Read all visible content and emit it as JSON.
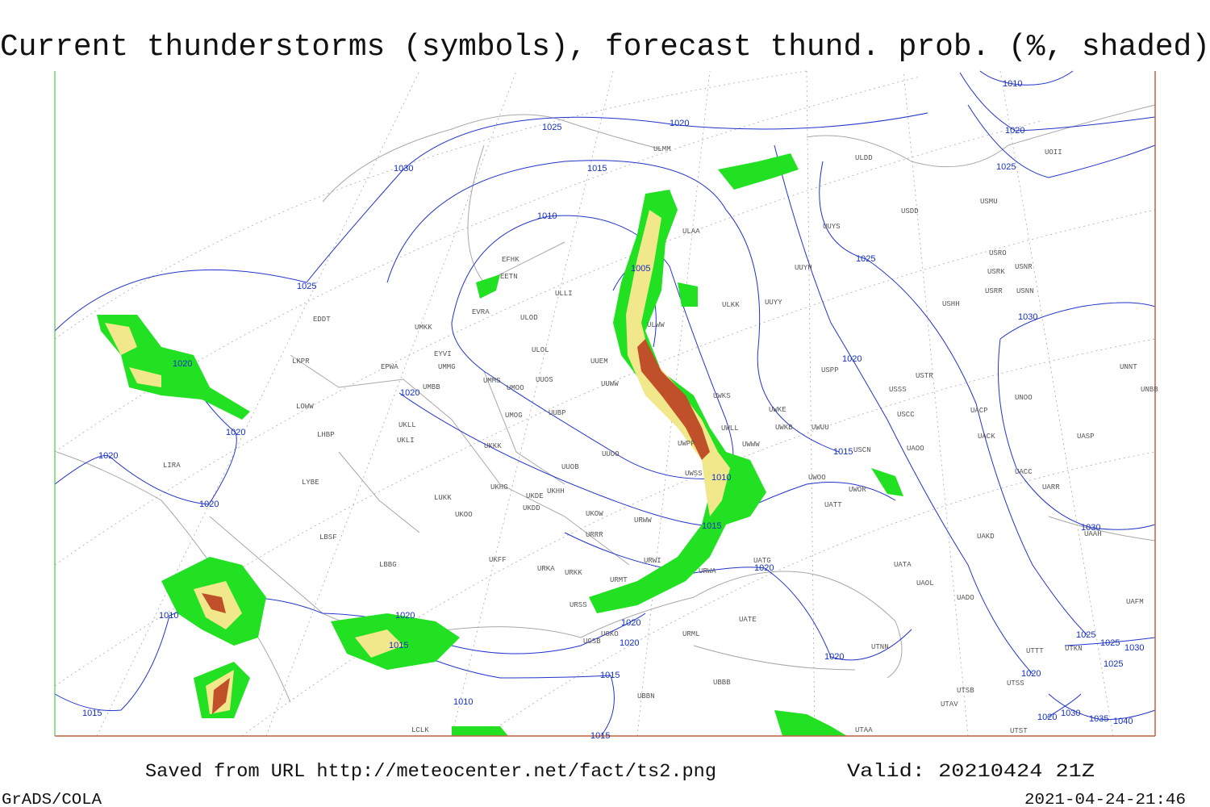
{
  "header": {
    "title": "Current thunderstorms (symbols), forecast thund. prob. (%, shaded)"
  },
  "footer": {
    "source": "Saved from URL http://meteocenter.net/fact/ts2.png",
    "valid": "Valid: 20210424 21Z",
    "software": "GrADS/COLA",
    "timestamp": "2021-04-24-21:46"
  },
  "stations": [
    "ULMM",
    "ULDD",
    "USDD",
    "USMU",
    "UOII",
    "UUYS",
    "ULAA",
    "UUYH",
    "USRO",
    "USRK",
    "USNR",
    "USRR",
    "USNN",
    "USHH",
    "EFHK",
    "EETN",
    "ULLI",
    "ULKK",
    "UUYY",
    "EVRA",
    "ULOD",
    "EDDT",
    "UMKK",
    "ULWW",
    "EYVI",
    "ULOL",
    "UUEM",
    "USPP",
    "USTR",
    "UNNT",
    "UNBB",
    "LKPR",
    "EPWA",
    "UMMG",
    "UMMS",
    "UMOO",
    "UUOS",
    "UUWW",
    "UWKS",
    "USSS",
    "UNOO",
    "UMBB",
    "UACP",
    "LOWW",
    "UMOG",
    "UUBP",
    "UWKE",
    "USCC",
    "UWKB",
    "UWUU",
    "UACK",
    "UASP",
    "UKLL",
    "UKLI",
    "LHBP",
    "UKKK",
    "UWLL",
    "UWWW",
    "UWPP",
    "USCN",
    "UAOO",
    "UUOO",
    "LIRA",
    "UUOB",
    "UWSS",
    "UWOO",
    "UACC",
    "UARR",
    "LYBE",
    "UKHH",
    "UKHG",
    "UKDE",
    "UWOR",
    "UAAH",
    "LUKK",
    "UKDD",
    "UATT",
    "UKOO",
    "UKOW",
    "URWW",
    "UAKD",
    "LBSF",
    "URRR",
    "UKFF",
    "URWI",
    "UATG",
    "LBBG",
    "URKA",
    "URKK",
    "URWA",
    "UATA",
    "URMT",
    "UAOL",
    "URSS",
    "UADO",
    "UATE",
    "UAFM",
    "UGSB",
    "UGKO",
    "UBBB",
    "UTNN",
    "URML",
    "UTTT",
    "UTKN",
    "UTSS",
    "UTSB",
    "UTAV",
    "UTAA",
    "UTST",
    "LCLK",
    "UBBN"
  ],
  "isobar_labels": [
    1030,
    1025,
    1020,
    1015,
    1010,
    1005,
    1025,
    1020,
    1020,
    1020,
    1020,
    1020,
    1010,
    1015,
    1020,
    1010,
    1020,
    1015,
    1020,
    1020,
    1015,
    1010,
    1015,
    1015,
    1020,
    1020,
    1025,
    1030,
    1025,
    1020,
    1010,
    1030,
    1025,
    1025,
    1030,
    1025,
    1020,
    1020,
    1030,
    1035,
    1040,
    1015
  ]
}
